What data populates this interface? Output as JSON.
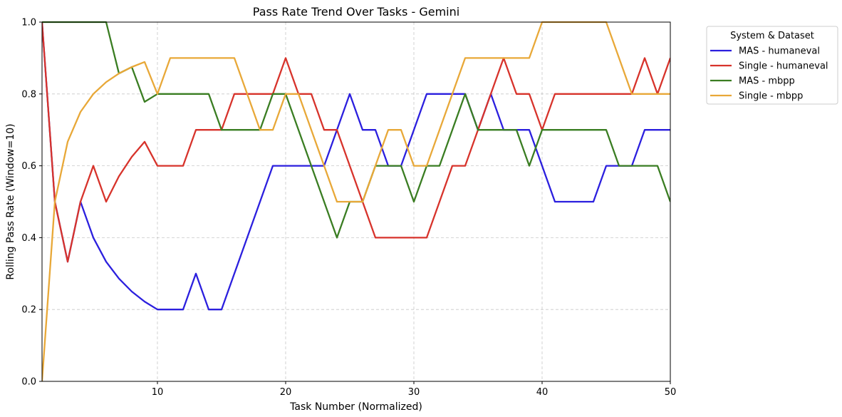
{
  "chart_data": {
    "type": "line",
    "title": "Pass Rate Trend Over Tasks - Gemini",
    "xlabel": "Task Number (Normalized)",
    "ylabel": "Rolling Pass Rate (Window=10)",
    "xlim": [
      1,
      50
    ],
    "ylim": [
      0,
      1
    ],
    "x_ticks": [
      10,
      20,
      30,
      40,
      50
    ],
    "y_ticks": [
      0.0,
      0.2,
      0.4,
      0.6,
      0.8,
      1.0
    ],
    "grid": true,
    "legend": {
      "title": "System & Dataset",
      "placement": "outside-right-top"
    },
    "x": [
      1,
      2,
      3,
      4,
      5,
      6,
      7,
      8,
      9,
      10,
      11,
      12,
      13,
      14,
      15,
      16,
      17,
      18,
      19,
      20,
      21,
      22,
      23,
      24,
      25,
      26,
      27,
      28,
      29,
      30,
      31,
      32,
      33,
      34,
      35,
      36,
      37,
      38,
      39,
      40,
      41,
      42,
      43,
      44,
      45,
      46,
      47,
      48,
      49,
      50
    ],
    "series": [
      {
        "name": "MAS - humaneval",
        "color": "#2b1fde",
        "values": [
          1.0,
          0.5,
          0.333,
          0.5,
          0.4,
          0.333,
          0.286,
          0.25,
          0.222,
          0.2,
          0.2,
          0.2,
          0.3,
          0.2,
          0.2,
          0.3,
          0.4,
          0.5,
          0.6,
          0.6,
          0.6,
          0.6,
          0.6,
          0.7,
          0.8,
          0.7,
          0.7,
          0.6,
          0.6,
          0.7,
          0.8,
          0.8,
          0.8,
          0.8,
          0.7,
          0.8,
          0.7,
          0.7,
          0.7,
          0.6,
          0.5,
          0.5,
          0.5,
          0.5,
          0.6,
          0.6,
          0.6,
          0.7,
          0.7,
          0.7
        ]
      },
      {
        "name": "Single - humaneval",
        "color": "#d7332b",
        "values": [
          1.0,
          0.5,
          0.333,
          0.5,
          0.6,
          0.5,
          0.571,
          0.625,
          0.667,
          0.6,
          0.6,
          0.6,
          0.7,
          0.7,
          0.7,
          0.8,
          0.8,
          0.8,
          0.8,
          0.9,
          0.8,
          0.8,
          0.7,
          0.7,
          0.6,
          0.5,
          0.4,
          0.4,
          0.4,
          0.4,
          0.4,
          0.5,
          0.6,
          0.6,
          0.7,
          0.8,
          0.9,
          0.8,
          0.8,
          0.7,
          0.8,
          0.8,
          0.8,
          0.8,
          0.8,
          0.8,
          0.8,
          0.9,
          0.8,
          0.9
        ]
      },
      {
        "name": "MAS - mbpp",
        "color": "#3a7d22",
        "values": [
          1.0,
          1.0,
          1.0,
          1.0,
          1.0,
          1.0,
          0.857,
          0.875,
          0.778,
          0.8,
          0.8,
          0.8,
          0.8,
          0.8,
          0.7,
          0.7,
          0.7,
          0.7,
          0.8,
          0.8,
          0.7,
          0.6,
          0.5,
          0.4,
          0.5,
          0.5,
          0.6,
          0.6,
          0.6,
          0.5,
          0.6,
          0.6,
          0.7,
          0.8,
          0.7,
          0.7,
          0.7,
          0.7,
          0.6,
          0.7,
          0.7,
          0.7,
          0.7,
          0.7,
          0.7,
          0.6,
          0.6,
          0.6,
          0.6,
          0.5
        ]
      },
      {
        "name": "Single - mbpp",
        "color": "#e8a838",
        "values": [
          0.0,
          0.5,
          0.667,
          0.75,
          0.8,
          0.833,
          0.857,
          0.875,
          0.889,
          0.8,
          0.9,
          0.9,
          0.9,
          0.9,
          0.9,
          0.9,
          0.8,
          0.7,
          0.7,
          0.8,
          0.8,
          0.7,
          0.6,
          0.5,
          0.5,
          0.5,
          0.6,
          0.7,
          0.7,
          0.6,
          0.6,
          0.7,
          0.8,
          0.9,
          0.9,
          0.9,
          0.9,
          0.9,
          0.9,
          1.0,
          1.0,
          1.0,
          1.0,
          1.0,
          1.0,
          0.9,
          0.8,
          0.8,
          0.8,
          0.8
        ]
      }
    ]
  }
}
